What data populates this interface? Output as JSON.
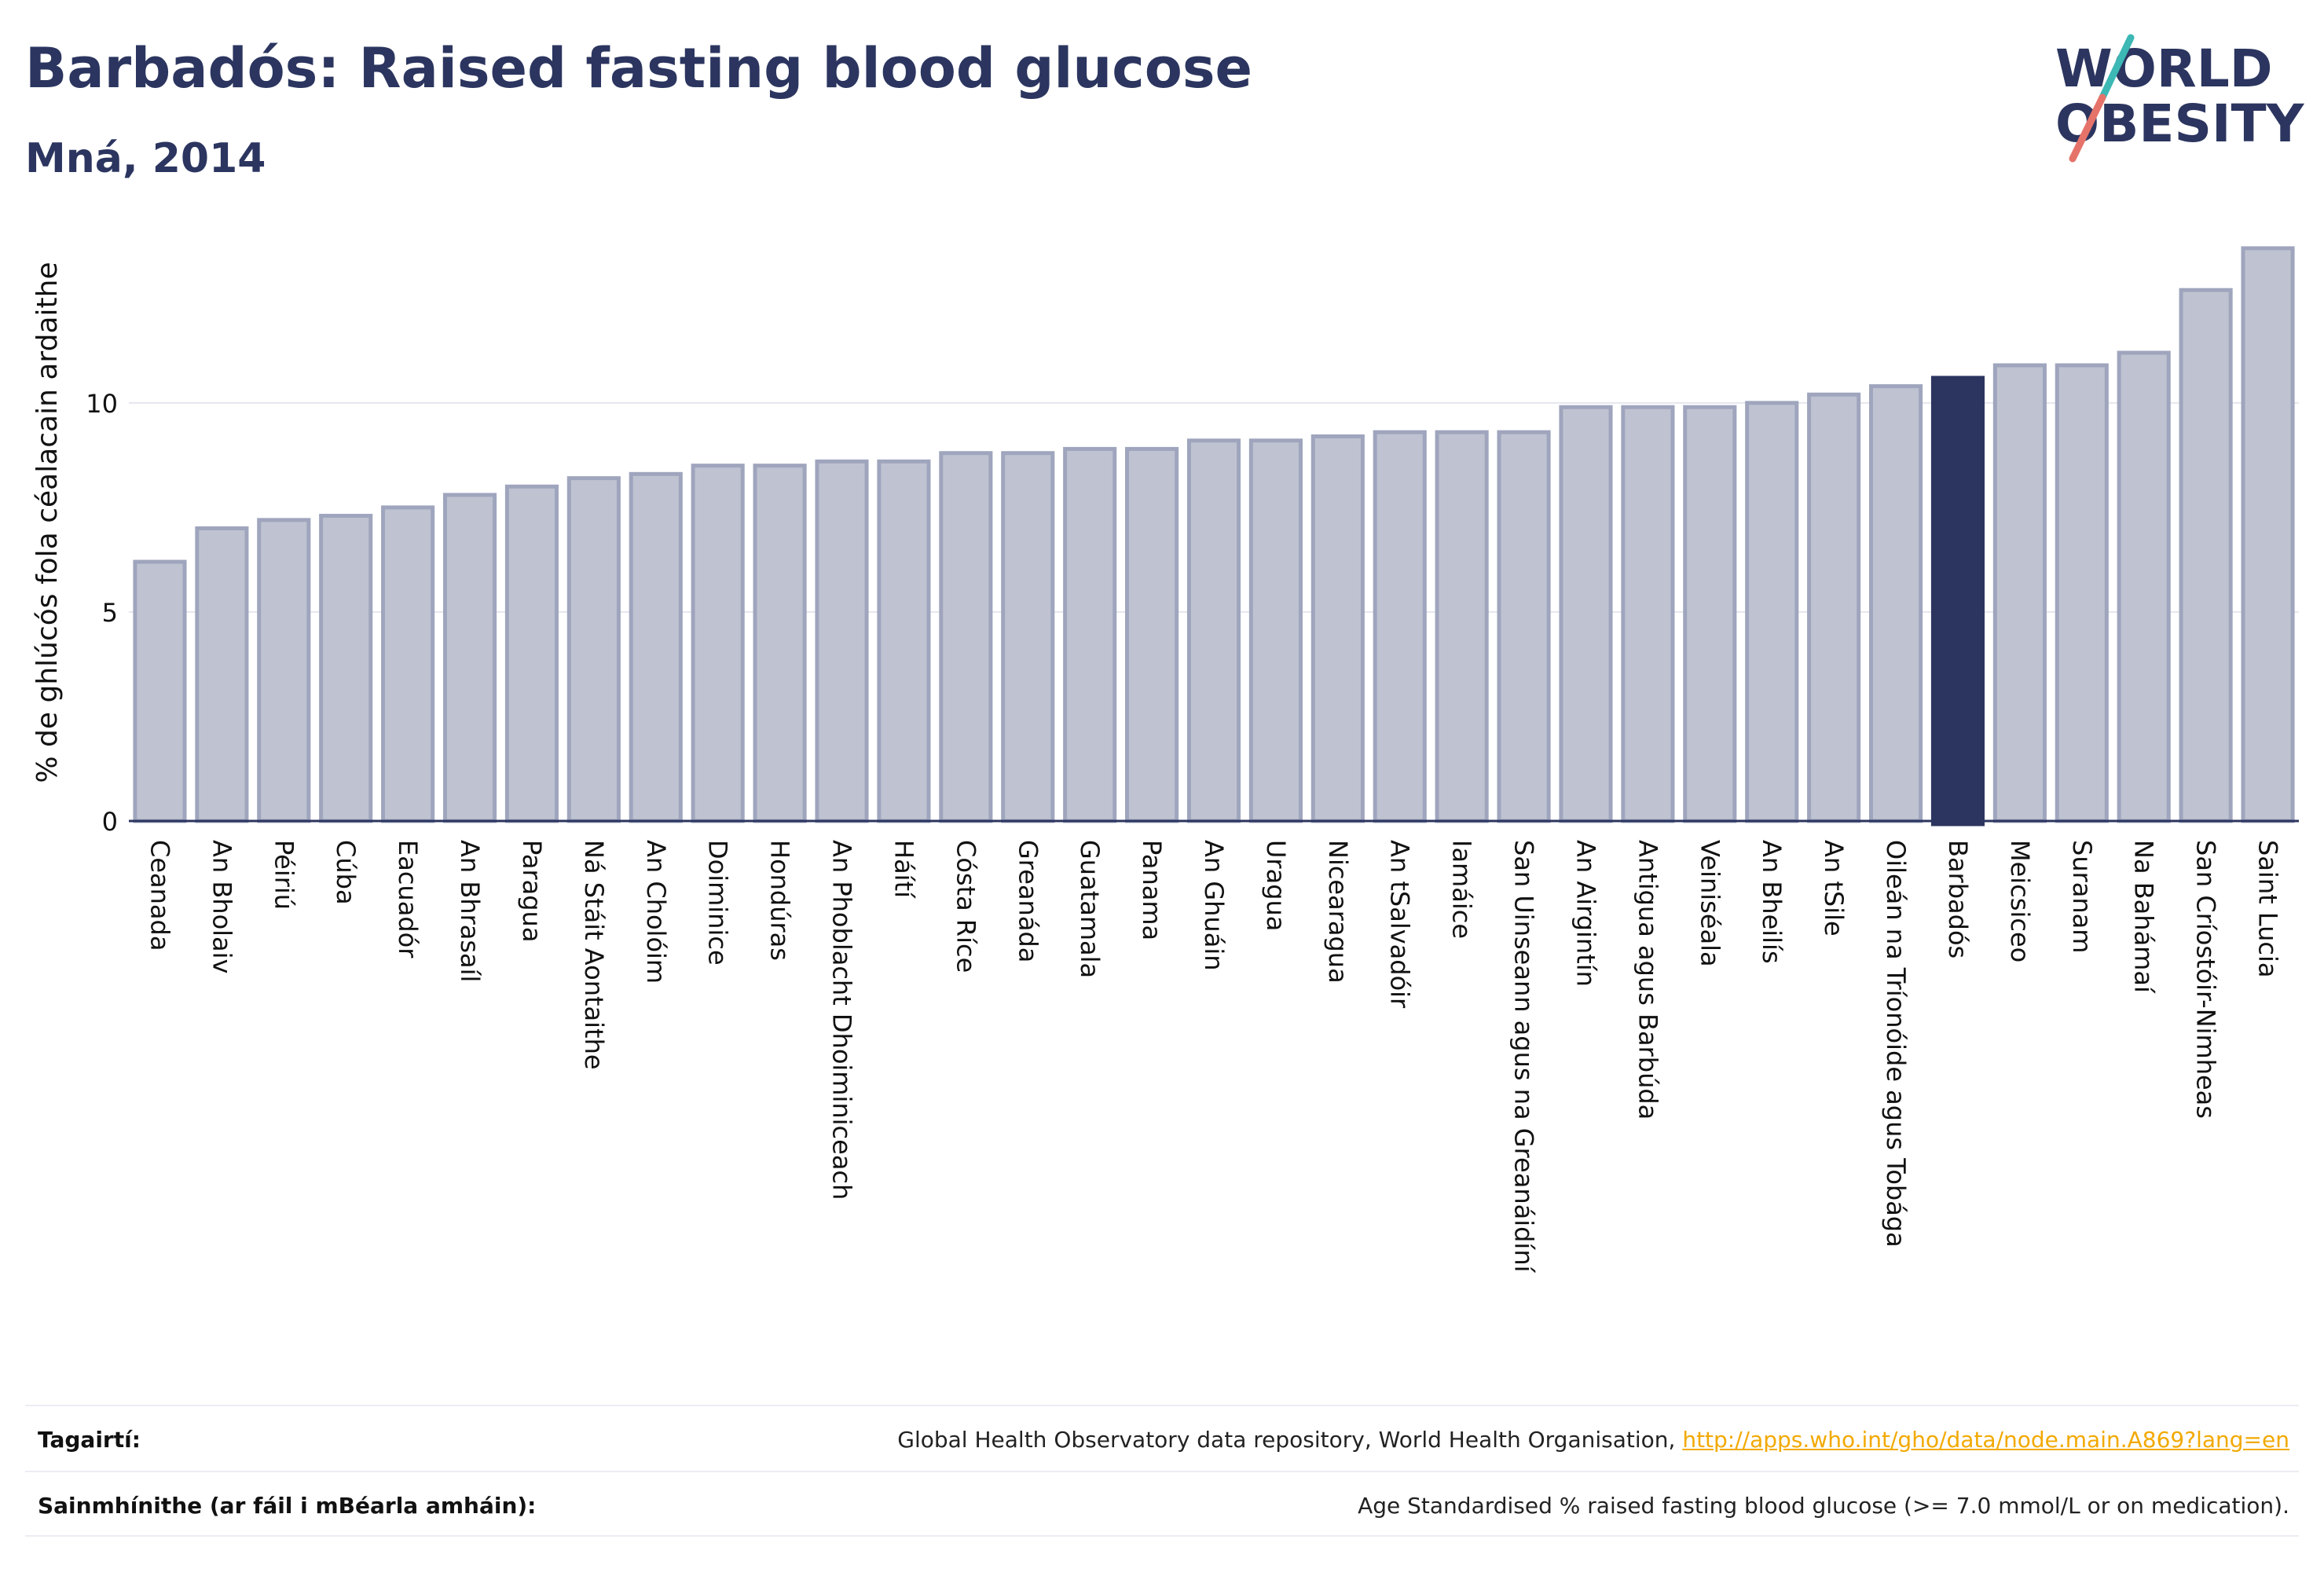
{
  "header": {
    "title": "Barbadós: Raised fasting blood glucose",
    "subtitle": "Mná, 2014"
  },
  "logo": {
    "line1": "WORLD",
    "line2": "OBESITY",
    "icon": "slash-logo-icon"
  },
  "colors": {
    "bar": "#bfc3d1",
    "bar_border": "#9fa5bd",
    "highlight": "#2b355f",
    "axis": "#2b355f",
    "grid": "#e6e7ee",
    "text": "#2b355f"
  },
  "chart_data": {
    "type": "bar",
    "ylabel": "% de ghlúcós fola céalacain ardaithe",
    "ylim": [
      0,
      14
    ],
    "yticks": [
      0,
      5,
      10
    ],
    "grid": "horizontal",
    "highlight": "Barbadós",
    "categories": [
      "Ceanada",
      "An Bholaiv",
      "Péiriú",
      "Cúba",
      "Eacuadór",
      "An Bhrasaíl",
      "Paragua",
      "Ná Stáit Aontaithe",
      "An Cholóim",
      "Doiminice",
      "Hondúras",
      "An Phoblacht Dhoiminiceach",
      "Háítí",
      "Cósta Ríce",
      "Greanáda",
      "Guatamala",
      "Panama",
      "An Ghuáin",
      "Uragua",
      "Nicearagua",
      "An tSalvadóir",
      "Iamáice",
      "San Uinseann agus na Greanáidíní",
      "An Airgintín",
      "Antigua agus Barbúda",
      "Veiniséala",
      "An Bheilís",
      "An tSile",
      "Oileán na Tríonóide agus Tobága",
      "Barbadós",
      "Meicsiceo",
      "Suranam",
      "Na Bahámaí",
      "San Críostóir-Nimheas",
      "Saint Lucia"
    ],
    "values": [
      6.2,
      7.0,
      7.2,
      7.3,
      7.5,
      7.8,
      8.0,
      8.2,
      8.3,
      8.5,
      8.5,
      8.6,
      8.6,
      8.8,
      8.8,
      8.9,
      8.9,
      9.1,
      9.1,
      9.2,
      9.3,
      9.3,
      9.3,
      9.9,
      9.9,
      9.9,
      10.0,
      10.2,
      10.4,
      10.6,
      10.9,
      10.9,
      11.2,
      12.7,
      13.7
    ]
  },
  "footer": {
    "references_label": "Tagairtí:",
    "references_text": "Global Health Observatory data repository, World Health Organisation, ",
    "references_link": "http://apps.who.int/gho/data/node.main.A869?lang=en",
    "definitions_label": "Sainmhínithe (ar fáil i mBéarla amháin):",
    "definitions_text": "Age Standardised % raised fasting blood glucose (>= 7.0 mmol/L or on medication)."
  }
}
